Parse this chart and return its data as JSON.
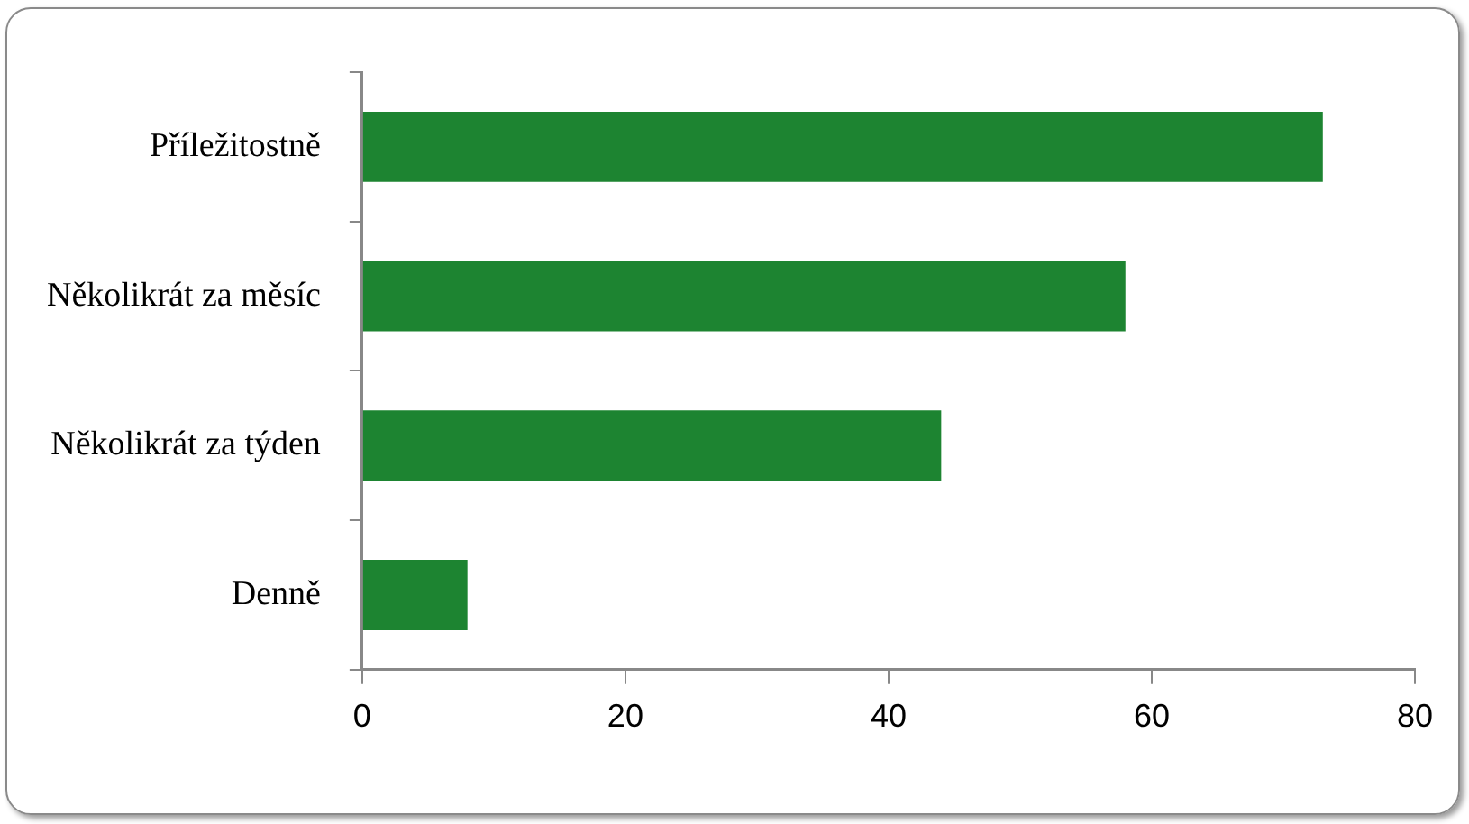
{
  "chart_data": {
    "type": "bar",
    "orientation": "horizontal",
    "categories": [
      "Příležitostně",
      "Několikrát za měsíc",
      "Několikrát za týden",
      "Denně"
    ],
    "values": [
      73,
      58,
      44,
      8
    ],
    "color": "#1d8431",
    "xlim": [
      0,
      80
    ],
    "xticks": [
      0,
      20,
      40,
      60,
      80
    ],
    "grid": false,
    "legend": false
  }
}
